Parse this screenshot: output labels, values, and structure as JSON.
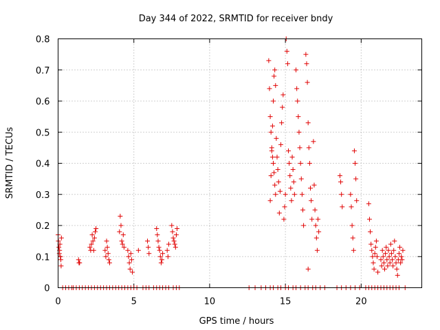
{
  "chart_data": {
    "type": "scatter",
    "title": "Day 344 of 2022, SRMTID for receiver bndy",
    "xlabel": "GPS time / hours",
    "ylabel": "SRMTID / TECUs",
    "xlim": [
      0,
      24
    ],
    "ylim": [
      0,
      0.8
    ],
    "xticks": [
      0,
      5,
      10,
      15,
      20
    ],
    "xtick_labels": [
      "0",
      "5",
      "10",
      "15",
      "20"
    ],
    "yticks": [
      0,
      0.1,
      0.2,
      0.3,
      0.4,
      0.5,
      0.6,
      0.7,
      0.8
    ],
    "ytick_labels": [
      "0",
      "0.1",
      "0.2",
      "0.3",
      "0.4",
      "0.5",
      "0.6",
      "0.7",
      "0.8"
    ],
    "grid": true,
    "marker": "+",
    "color": "#e00000",
    "series": [
      {
        "name": "SRMTID",
        "points": [
          [
            0.0,
            0.17
          ],
          [
            0.02,
            0.15
          ],
          [
            0.05,
            0.13
          ],
          [
            0.08,
            0.11
          ],
          [
            0.1,
            0.12
          ],
          [
            0.12,
            0.14
          ],
          [
            0.15,
            0.1
          ],
          [
            0.18,
            0.09
          ],
          [
            0.2,
            0.07
          ],
          [
            0.22,
            0.16
          ],
          [
            1.35,
            0.09
          ],
          [
            1.38,
            0.08
          ],
          [
            1.42,
            0.08
          ],
          [
            2.1,
            0.13
          ],
          [
            2.15,
            0.12
          ],
          [
            2.2,
            0.14
          ],
          [
            2.25,
            0.17
          ],
          [
            2.3,
            0.15
          ],
          [
            2.35,
            0.12
          ],
          [
            2.4,
            0.16
          ],
          [
            2.45,
            0.18
          ],
          [
            2.5,
            0.19
          ],
          [
            3.1,
            0.12
          ],
          [
            3.15,
            0.1
          ],
          [
            3.2,
            0.15
          ],
          [
            3.25,
            0.13
          ],
          [
            3.3,
            0.11
          ],
          [
            3.35,
            0.09
          ],
          [
            3.4,
            0.08
          ],
          [
            4.05,
            0.18
          ],
          [
            4.1,
            0.23
          ],
          [
            4.15,
            0.2
          ],
          [
            4.2,
            0.15
          ],
          [
            4.25,
            0.14
          ],
          [
            4.3,
            0.17
          ],
          [
            4.35,
            0.13
          ],
          [
            4.6,
            0.12
          ],
          [
            4.65,
            0.1
          ],
          [
            4.7,
            0.08
          ],
          [
            4.75,
            0.06
          ],
          [
            4.8,
            0.11
          ],
          [
            4.85,
            0.09
          ],
          [
            4.9,
            0.05
          ],
          [
            5.3,
            0.12
          ],
          [
            5.9,
            0.15
          ],
          [
            5.95,
            0.13
          ],
          [
            6.0,
            0.11
          ],
          [
            6.5,
            0.19
          ],
          [
            6.55,
            0.17
          ],
          [
            6.6,
            0.15
          ],
          [
            6.65,
            0.13
          ],
          [
            6.7,
            0.12
          ],
          [
            6.75,
            0.1
          ],
          [
            6.8,
            0.08
          ],
          [
            6.85,
            0.09
          ],
          [
            6.9,
            0.11
          ],
          [
            7.2,
            0.12
          ],
          [
            7.25,
            0.1
          ],
          [
            7.3,
            0.14
          ],
          [
            7.5,
            0.2
          ],
          [
            7.55,
            0.18
          ],
          [
            7.6,
            0.16
          ],
          [
            7.65,
            0.15
          ],
          [
            7.7,
            0.14
          ],
          [
            7.75,
            0.13
          ],
          [
            7.8,
            0.17
          ],
          [
            7.85,
            0.19
          ],
          [
            13.9,
            0.73
          ],
          [
            13.95,
            0.64
          ],
          [
            14.0,
            0.55
          ],
          [
            14.05,
            0.5
          ],
          [
            14.1,
            0.45
          ],
          [
            14.15,
            0.42
          ],
          [
            14.2,
            0.4
          ],
          [
            14.25,
            0.37
          ],
          [
            14.3,
            0.33
          ],
          [
            14.35,
            0.3
          ],
          [
            14.0,
            0.28
          ],
          [
            14.05,
            0.36
          ],
          [
            14.1,
            0.44
          ],
          [
            14.15,
            0.52
          ],
          [
            14.2,
            0.6
          ],
          [
            14.25,
            0.68
          ],
          [
            14.3,
            0.7
          ],
          [
            14.35,
            0.65
          ],
          [
            14.4,
            0.48
          ],
          [
            14.45,
            0.42
          ],
          [
            14.5,
            0.38
          ],
          [
            14.55,
            0.34
          ],
          [
            14.6,
            0.24
          ],
          [
            14.65,
            0.31
          ],
          [
            14.7,
            0.46
          ],
          [
            14.75,
            0.53
          ],
          [
            14.8,
            0.58
          ],
          [
            14.85,
            0.62
          ],
          [
            14.9,
            0.22
          ],
          [
            14.95,
            0.26
          ],
          [
            15.0,
            0.3
          ],
          [
            15.05,
            0.8
          ],
          [
            15.1,
            0.76
          ],
          [
            15.15,
            0.72
          ],
          [
            15.2,
            0.44
          ],
          [
            15.25,
            0.4
          ],
          [
            15.3,
            0.36
          ],
          [
            15.35,
            0.32
          ],
          [
            15.4,
            0.28
          ],
          [
            15.45,
            0.42
          ],
          [
            15.5,
            0.38
          ],
          [
            15.55,
            0.34
          ],
          [
            15.6,
            0.3
          ],
          [
            15.7,
            0.7
          ],
          [
            15.75,
            0.64
          ],
          [
            15.8,
            0.6
          ],
          [
            15.85,
            0.55
          ],
          [
            15.9,
            0.5
          ],
          [
            15.95,
            0.45
          ],
          [
            16.0,
            0.4
          ],
          [
            16.05,
            0.35
          ],
          [
            16.1,
            0.3
          ],
          [
            16.15,
            0.25
          ],
          [
            16.2,
            0.2
          ],
          [
            16.35,
            0.75
          ],
          [
            16.4,
            0.72
          ],
          [
            16.45,
            0.66
          ],
          [
            16.5,
            0.53
          ],
          [
            16.55,
            0.45
          ],
          [
            16.6,
            0.4
          ],
          [
            16.65,
            0.32
          ],
          [
            16.7,
            0.28
          ],
          [
            16.75,
            0.22
          ],
          [
            16.5,
            0.06
          ],
          [
            16.85,
            0.47
          ],
          [
            16.9,
            0.33
          ],
          [
            16.95,
            0.25
          ],
          [
            17.0,
            0.2
          ],
          [
            17.05,
            0.16
          ],
          [
            17.1,
            0.12
          ],
          [
            17.15,
            0.22
          ],
          [
            17.2,
            0.18
          ],
          [
            18.6,
            0.36
          ],
          [
            18.65,
            0.34
          ],
          [
            18.7,
            0.3
          ],
          [
            18.75,
            0.26
          ],
          [
            19.3,
            0.3
          ],
          [
            19.35,
            0.26
          ],
          [
            19.4,
            0.2
          ],
          [
            19.45,
            0.16
          ],
          [
            19.5,
            0.12
          ],
          [
            19.55,
            0.44
          ],
          [
            19.6,
            0.4
          ],
          [
            19.65,
            0.35
          ],
          [
            19.7,
            0.28
          ],
          [
            20.5,
            0.27
          ],
          [
            20.55,
            0.22
          ],
          [
            20.6,
            0.18
          ],
          [
            20.65,
            0.14
          ],
          [
            20.7,
            0.12
          ],
          [
            20.75,
            0.1
          ],
          [
            20.8,
            0.08
          ],
          [
            20.85,
            0.06
          ],
          [
            20.9,
            0.11
          ],
          [
            20.95,
            0.13
          ],
          [
            21.0,
            0.15
          ],
          [
            21.05,
            0.1
          ],
          [
            21.1,
            0.05
          ],
          [
            21.3,
            0.09
          ],
          [
            21.35,
            0.07
          ],
          [
            21.4,
            0.12
          ],
          [
            21.45,
            0.1
          ],
          [
            21.5,
            0.08
          ],
          [
            21.55,
            0.06
          ],
          [
            21.6,
            0.11
          ],
          [
            21.65,
            0.13
          ],
          [
            21.7,
            0.09
          ],
          [
            21.75,
            0.07
          ],
          [
            21.8,
            0.12
          ],
          [
            21.85,
            0.1
          ],
          [
            21.9,
            0.08
          ],
          [
            21.95,
            0.14
          ],
          [
            22.0,
            0.11
          ],
          [
            22.05,
            0.09
          ],
          [
            22.1,
            0.07
          ],
          [
            22.15,
            0.12
          ],
          [
            22.2,
            0.15
          ],
          [
            22.25,
            0.1
          ],
          [
            22.3,
            0.08
          ],
          [
            22.35,
            0.06
          ],
          [
            22.4,
            0.04
          ],
          [
            22.45,
            0.09
          ],
          [
            22.5,
            0.11
          ],
          [
            22.55,
            0.13
          ],
          [
            22.6,
            0.08
          ],
          [
            22.65,
            0.1
          ],
          [
            22.7,
            0.09
          ],
          [
            22.75,
            0.12
          ]
        ],
        "zeros": [
          0.3,
          0.5,
          0.7,
          0.9,
          1.0,
          1.2,
          1.4,
          1.6,
          1.8,
          2.0,
          2.2,
          2.4,
          2.6,
          2.8,
          3.0,
          3.2,
          3.4,
          3.6,
          3.8,
          4.0,
          4.2,
          4.4,
          4.6,
          4.8,
          5.0,
          5.2,
          5.6,
          5.8,
          6.0,
          6.3,
          6.5,
          6.7,
          6.9,
          7.1,
          7.3,
          7.6,
          7.8,
          8.0,
          12.6,
          13.0,
          13.4,
          13.7,
          14.0,
          14.2,
          14.5,
          14.7,
          15.0,
          15.2,
          15.5,
          15.7,
          16.0,
          16.3,
          16.5,
          16.8,
          17.0,
          17.3,
          17.6,
          18.4,
          18.7,
          19.0,
          19.3,
          19.6,
          19.9,
          20.3,
          20.5,
          20.7,
          20.9,
          21.1,
          21.3,
          21.5,
          21.7,
          21.9,
          22.1,
          22.3,
          22.5,
          22.9
        ]
      }
    ]
  }
}
